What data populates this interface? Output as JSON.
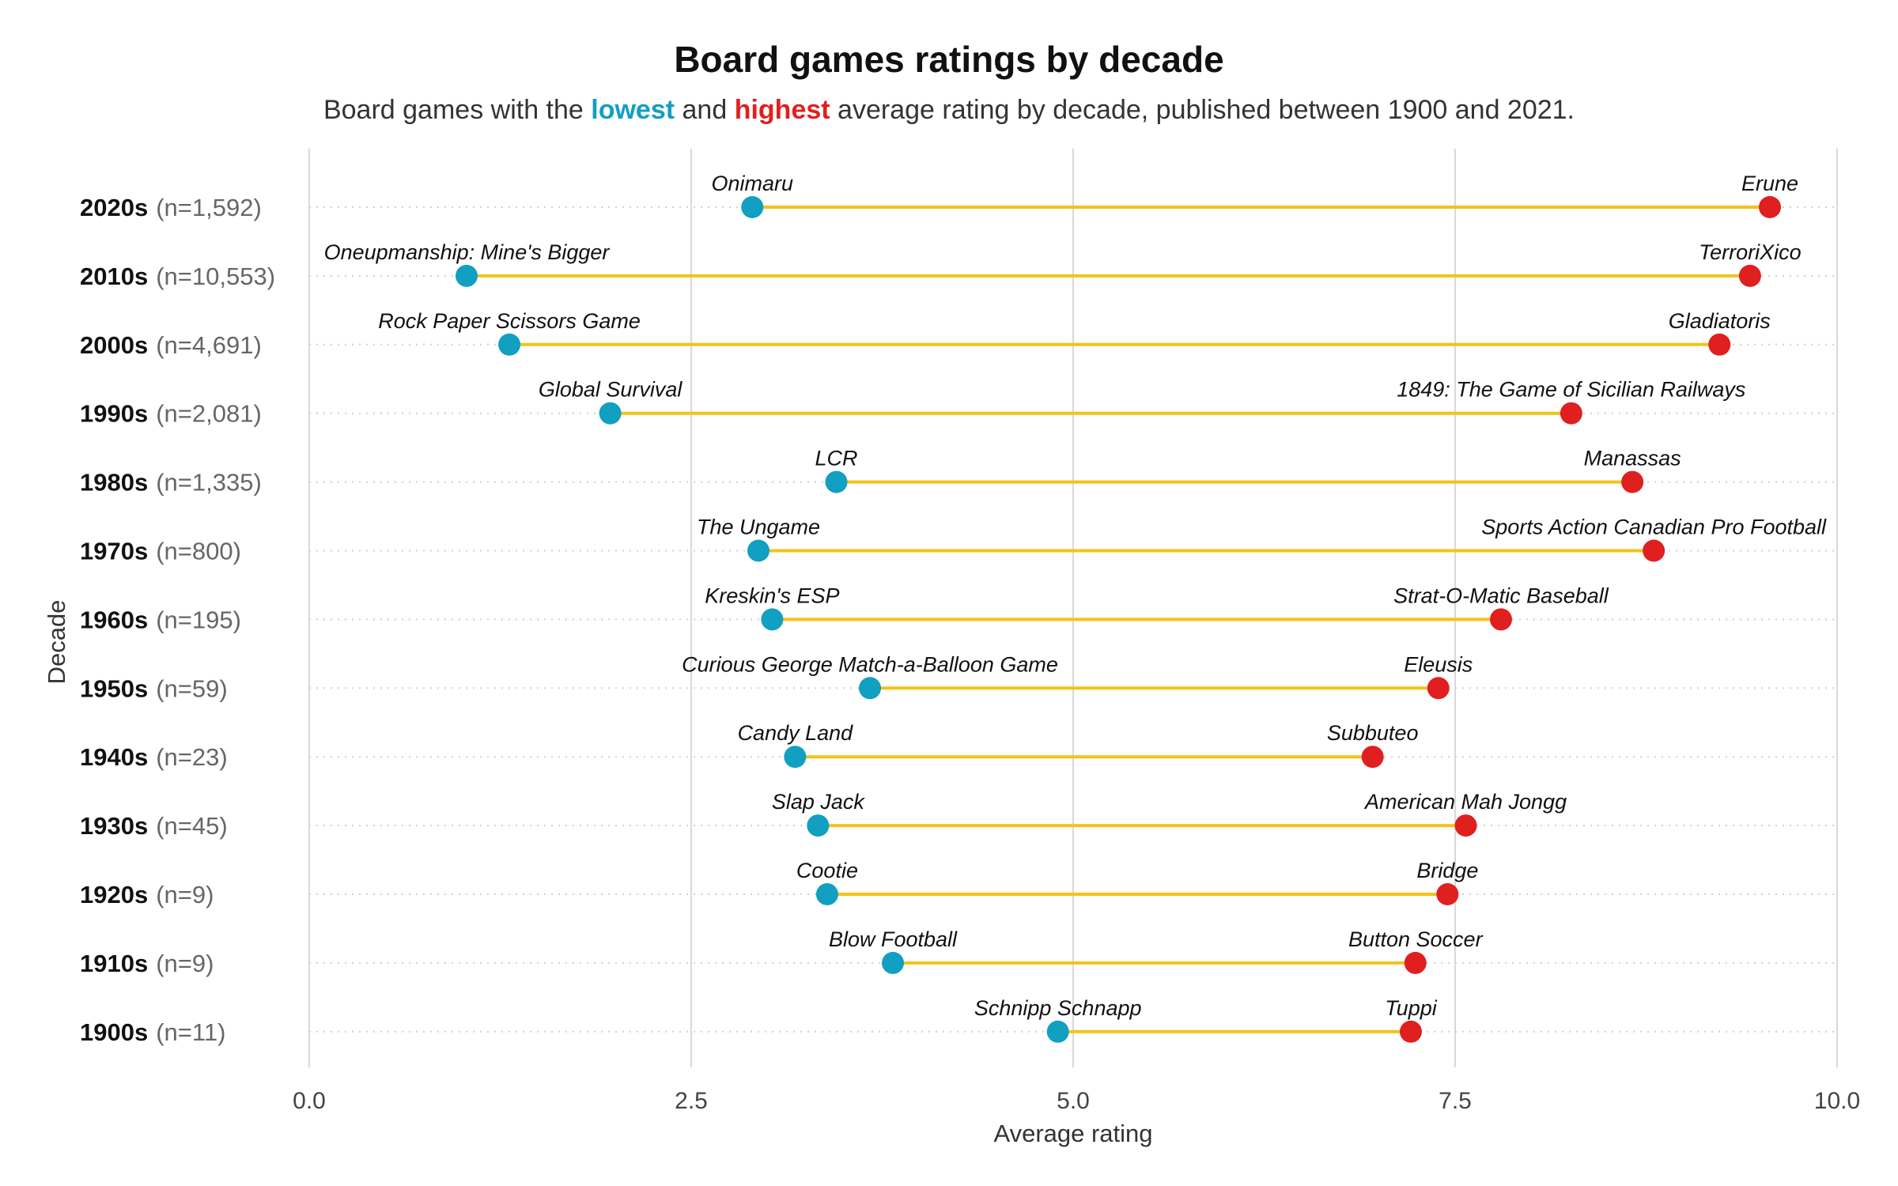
{
  "title": "Board games ratings by decade",
  "subtitle": {
    "before": "Board games with the ",
    "low_word": "lowest",
    "middle": " and ",
    "high_word": "highest",
    "after": " average rating by decade, published between 1900 and 2021."
  },
  "colors": {
    "low": "#119fc2",
    "high": "#e01f1f",
    "segment": "#f2c318",
    "grid": "#d9d9d9",
    "row_guide": "#d0d0d0"
  },
  "chart_data": {
    "type": "dumbbell",
    "xlabel": "Average rating",
    "ylabel": "Decade",
    "xlim": [
      0,
      10
    ],
    "xticks": [
      {
        "value": 0,
        "label": "0.0"
      },
      {
        "value": 2.5,
        "label": "2.5"
      },
      {
        "value": 5,
        "label": "5.0"
      },
      {
        "value": 7.5,
        "label": "7.5"
      },
      {
        "value": 10,
        "label": "10.0"
      }
    ],
    "rows": [
      {
        "decade": "2020s",
        "count": "(n=1,592)",
        "low_name": "Onimaru",
        "low": 2.9,
        "high_name": "Erune",
        "high": 9.56
      },
      {
        "decade": "2010s",
        "count": "(n=10,553)",
        "low_name": "Oneupmanship: Mine's Bigger",
        "low": 1.03,
        "high_name": "TerroriXico",
        "high": 9.43
      },
      {
        "decade": "2000s",
        "count": "(n=4,691)",
        "low_name": "Rock Paper Scissors Game",
        "low": 1.31,
        "high_name": "Gladiatoris",
        "high": 9.23
      },
      {
        "decade": "1990s",
        "count": "(n=2,081)",
        "low_name": "Global Survival",
        "low": 1.97,
        "high_name": "1849: The Game of Sicilian Railways",
        "high": 8.26
      },
      {
        "decade": "1980s",
        "count": "(n=1,335)",
        "low_name": "LCR",
        "low": 3.45,
        "high_name": "Manassas",
        "high": 8.66
      },
      {
        "decade": "1970s",
        "count": "(n=800)",
        "low_name": "The Ungame",
        "low": 2.94,
        "high_name": "Sports Action Canadian Pro Football",
        "high": 8.8
      },
      {
        "decade": "1960s",
        "count": "(n=195)",
        "low_name": "Kreskin's ESP",
        "low": 3.03,
        "high_name": "Strat-O-Matic Baseball",
        "high": 7.8
      },
      {
        "decade": "1950s",
        "count": "(n=59)",
        "low_name": "Curious George Match-a-Balloon Game",
        "low": 3.67,
        "high_name": "Eleusis",
        "high": 7.39
      },
      {
        "decade": "1940s",
        "count": "(n=23)",
        "low_name": "Candy Land",
        "low": 3.18,
        "high_name": "Subbuteo",
        "high": 6.96
      },
      {
        "decade": "1930s",
        "count": "(n=45)",
        "low_name": "Slap Jack",
        "low": 3.33,
        "high_name": "American Mah Jongg",
        "high": 7.57
      },
      {
        "decade": "1920s",
        "count": "(n=9)",
        "low_name": "Cootie",
        "low": 3.39,
        "high_name": "Bridge",
        "high": 7.45
      },
      {
        "decade": "1910s",
        "count": "(n=9)",
        "low_name": "Blow Football",
        "low": 3.82,
        "high_name": "Button Soccer",
        "high": 7.24
      },
      {
        "decade": "1900s",
        "count": "(n=11)",
        "low_name": "Schnipp Schnapp",
        "low": 4.9,
        "high_name": "Tuppi",
        "high": 7.21
      }
    ]
  }
}
